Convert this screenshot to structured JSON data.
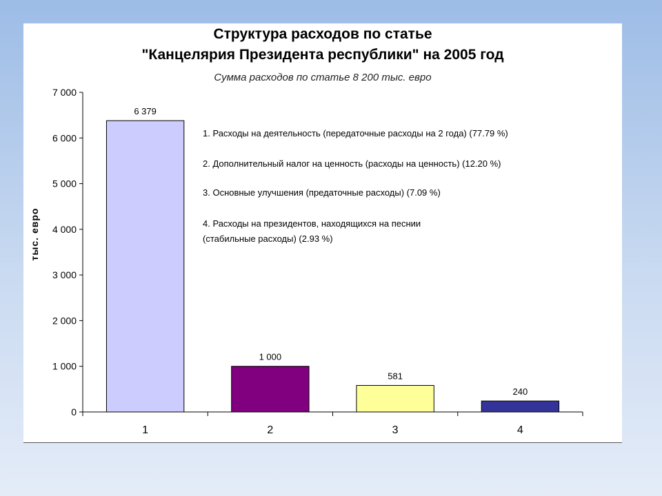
{
  "chart_data": {
    "type": "bar",
    "title_line1": "Структура расходов по статье",
    "title_line2": "\"Канцелярия Президента республики\" на 2005 год",
    "subtitle": "Сумма расходов по статье 8 200 тыс. евро",
    "ylabel": "тыс. евро",
    "xlabel": "",
    "categories": [
      "1",
      "2",
      "3",
      "4"
    ],
    "values": [
      6379,
      1000,
      581,
      240
    ],
    "value_labels": [
      "6 379",
      "1 000",
      "581",
      "240"
    ],
    "colors": [
      "#ccccff",
      "#800080",
      "#ffff99",
      "#333399"
    ],
    "ylim": [
      0,
      7000
    ],
    "yticks": [
      0,
      1000,
      2000,
      3000,
      4000,
      5000,
      6000,
      7000
    ],
    "ytick_labels": [
      "0",
      "1 000",
      "2 000",
      "3 000",
      "4 000",
      "5 000",
      "6 000",
      "7 000"
    ],
    "grid": false,
    "legend_notes": [
      "1. Расходы на деятельность (передаточные расходы на 2 года) (77.79 %)",
      "2. Дополнительный налог на ценность (расходы на ценность) (12.20 %)",
      "3. Основные улучшения (предаточные расходы) (7.09 %)",
      "4. Расходы на президентов, находящихся на песнии",
      "(стабильные расходы) (2.93 %)"
    ]
  }
}
